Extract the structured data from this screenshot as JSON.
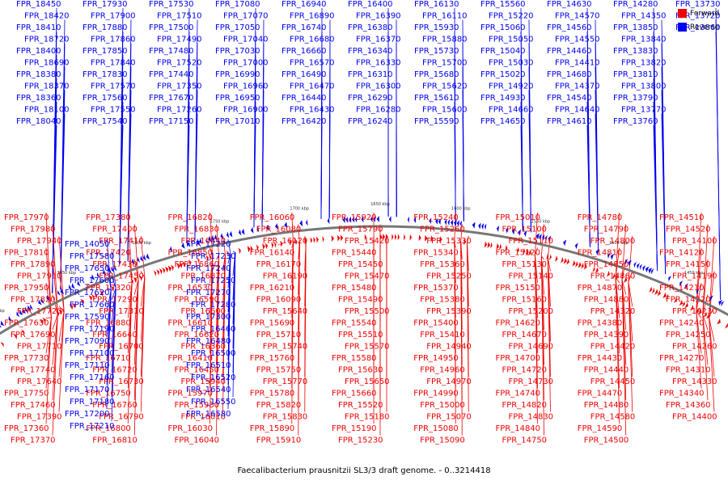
{
  "caption": "Faecalibacterium prausnitzii SL3/3 draft genome. - 0..3214418",
  "colors": {
    "forward": "#ee0000",
    "reverse": "#0000ee",
    "backbone": "#777777"
  },
  "legend": [
    {
      "label": "Forward",
      "color": "#ee0000"
    },
    {
      "label": "Reverse",
      "color": "#0000ee"
    }
  ],
  "scale_ticks": [
    "1900 kbp",
    "1850 kbp",
    "1800 kbp",
    "1750 kbp",
    "1700 kbp",
    "1650 kbp",
    "1600 kbp",
    "1550 kbp",
    "1500 kbp",
    "1450 kbp",
    "1400 kbp"
  ],
  "reverse_labels": [
    "FPR_18450",
    "FPR_18420",
    "FPR_18410",
    "FPR_18720",
    "FPR_18400",
    "FPR_18690",
    "FPR_18380",
    "FPR_18370",
    "FPR_18360",
    "FPR_18100",
    "FPR_18040",
    "FPR_17930",
    "FPR_17900",
    "FPR_17880",
    "FPR_17860",
    "FPR_17850",
    "FPR_17840",
    "FPR_17830",
    "FPR_17570",
    "FPR_17560",
    "FPR_17550",
    "FPR_17540",
    "FPR_17530",
    "FPR_17510",
    "FPR_17500",
    "FPR_17490",
    "FPR_17480",
    "FPR_17520",
    "FPR_17440",
    "FPR_17350",
    "FPR_17670",
    "FPR_17260",
    "FPR_17150",
    "FPR_17080",
    "FPR_17070",
    "FPR_17050",
    "FPR_17040",
    "FPR_17030",
    "FPR_17000",
    "FPR_16990",
    "FPR_16960",
    "FPR_16950",
    "FPR_16900",
    "FPR_17010",
    "FPR_16940",
    "FPR_16890",
    "FPR_16740",
    "FPR_16680",
    "FPR_16660",
    "FPR_16570",
    "FPR_16490",
    "FPR_16470",
    "FPR_16440",
    "FPR_16430",
    "FPR_16420",
    "FPR_16400",
    "FPR_16390",
    "FPR_16380",
    "FPR_16370",
    "FPR_16340",
    "FPR_16330",
    "FPR_16310",
    "FPR_16300",
    "FPR_16290",
    "FPR_16280",
    "FPR_16240",
    "FPR_16130",
    "FPR_16110",
    "FPR_15930",
    "FPR_15880",
    "FPR_15730",
    "FPR_15700",
    "FPR_15680",
    "FPR_15620",
    "FPR_15610",
    "FPR_15600",
    "FPR_15590",
    "FPR_15560",
    "FPR_15220",
    "FPR_15060",
    "FPR_15050",
    "FPR_15040",
    "FPR_15030",
    "FPR_15020",
    "FPR_14920",
    "FPR_14930",
    "FPR_14660",
    "FPR_14650",
    "FPR_14630",
    "FPR_14570",
    "FPR_14560",
    "FPR_14550",
    "FPR_14460",
    "FPR_14410",
    "FPR_14680",
    "FPR_14370",
    "FPR_14540",
    "FPR_14640",
    "FPR_14610",
    "FPR_14280",
    "FPR_14350",
    "FPR_13850",
    "FPR_13840",
    "FPR_13830",
    "FPR_13820",
    "FPR_13810",
    "FPR_13800",
    "FPR_13790",
    "FPR_13770",
    "FPR_13760",
    "FPR_13730",
    "FPR_13720",
    "FPR_13860",
    "FPR_14050",
    "FPR_17580",
    "FPR_17650",
    "FPR_17600",
    "FPR_17620",
    "FPR_17660",
    "FPR_17590",
    "FPR_17190",
    "FPR_17090",
    "FPR_17100",
    "FPR_17110",
    "FPR_17160",
    "FPR_17170",
    "FPR_17180",
    "FPR_17200",
    "FPR_17210",
    "FPR_17220",
    "FPR_17230",
    "FPR_17240",
    "FPR_17250",
    "FPR_17270",
    "FPR_17280",
    "FPR_17300",
    "FPR_16460",
    "FPR_16480",
    "FPR_16500",
    "FPR_16510",
    "FPR_16520",
    "FPR_16540",
    "FPR_16550",
    "FPR_16580"
  ],
  "forward_labels": [
    "FPR_17970",
    "FPR_17980",
    "FPR_17940",
    "FPR_17810",
    "FPR_17890",
    "FPR_17910",
    "FPR_17950",
    "FPR_17820",
    "FPR_17720",
    "FPR_17630",
    "FPR_17690",
    "FPR_17710",
    "FPR_17730",
    "FPR_17740",
    "FPR_17640",
    "FPR_17750",
    "FPR_17460",
    "FPR_17390",
    "FPR_17360",
    "FPR_17370",
    "FPR_17380",
    "FPR_17400",
    "FPR_17410",
    "FPR_17420",
    "FPR_17430",
    "FPR_17450",
    "FPR_17320",
    "FPR_17290",
    "FPR_17310",
    "FPR_16880",
    "FPR_16640",
    "FPR_16700",
    "FPR_16710",
    "FPR_16720",
    "FPR_16730",
    "FPR_16750",
    "FPR_16760",
    "FPR_16790",
    "FPR_16800",
    "FPR_16810",
    "FPR_16820",
    "FPR_16830",
    "FPR_16840",
    "FPR_16850",
    "FPR_16860",
    "FPR_16870",
    "FPR_16530",
    "FPR_16590",
    "FPR_16600",
    "FPR_16610",
    "FPR_16620",
    "FPR_16360",
    "FPR_16410",
    "FPR_16450",
    "FPR_15940",
    "FPR_15970",
    "FPR_15980",
    "FPR_16010",
    "FPR_16030",
    "FPR_16040",
    "FPR_16060",
    "FPR_16080",
    "FPR_16120",
    "FPR_16140",
    "FPR_16170",
    "FPR_16190",
    "FPR_16210",
    "FPR_16090",
    "FPR_15640",
    "FPR_15690",
    "FPR_15710",
    "FPR_15740",
    "FPR_15760",
    "FPR_15750",
    "FPR_15770",
    "FPR_15780",
    "FPR_15820",
    "FPR_15830",
    "FPR_15890",
    "FPR_15910",
    "FPR_15920",
    "FPR_15790",
    "FPR_15420",
    "FPR_15440",
    "FPR_15450",
    "FPR_15470",
    "FPR_15480",
    "FPR_15490",
    "FPR_15500",
    "FPR_15540",
    "FPR_15510",
    "FPR_15570",
    "FPR_15580",
    "FPR_15630",
    "FPR_15650",
    "FPR_15660",
    "FPR_15520",
    "FPR_15180",
    "FPR_15190",
    "FPR_15230",
    "FPR_15240",
    "FPR_15260",
    "FPR_15330",
    "FPR_15340",
    "FPR_15360",
    "FPR_15250",
    "FPR_15370",
    "FPR_15380",
    "FPR_15390",
    "FPR_15400",
    "FPR_15410",
    "FPR_14940",
    "FPR_14950",
    "FPR_14960",
    "FPR_14970",
    "FPR_14990",
    "FPR_15000",
    "FPR_15070",
    "FPR_15080",
    "FPR_15090",
    "FPR_15010",
    "FPR_15100",
    "FPR_15110",
    "FPR_15120",
    "FPR_15130",
    "FPR_15140",
    "FPR_15150",
    "FPR_15160",
    "FPR_15200",
    "FPR_14620",
    "FPR_14670",
    "FPR_14690",
    "FPR_14700",
    "FPR_14720",
    "FPR_14730",
    "FPR_14740",
    "FPR_14820",
    "FPR_14830",
    "FPR_14840",
    "FPR_14750",
    "FPR_14780",
    "FPR_14790",
    "FPR_14800",
    "FPR_14810",
    "FPR_14850",
    "FPR_14860",
    "FPR_14870",
    "FPR_14880",
    "FPR_14320",
    "FPR_14380",
    "FPR_14390",
    "FPR_14420",
    "FPR_14430",
    "FPR_14440",
    "FPR_14450",
    "FPR_14470",
    "FPR_14480",
    "FPR_14580",
    "FPR_14590",
    "FPR_14500",
    "FPR_14510",
    "FPR_14520",
    "FPR_14100",
    "FPR_14120",
    "FPR_14150",
    "FPR_14190",
    "FPR_14210",
    "FPR_14220",
    "FPR_14230",
    "FPR_14240",
    "FPR_14250",
    "FPR_14260",
    "FPR_14270",
    "FPR_14310",
    "FPR_14330",
    "FPR_14340",
    "FPR_14360",
    "FPR_14400"
  ]
}
